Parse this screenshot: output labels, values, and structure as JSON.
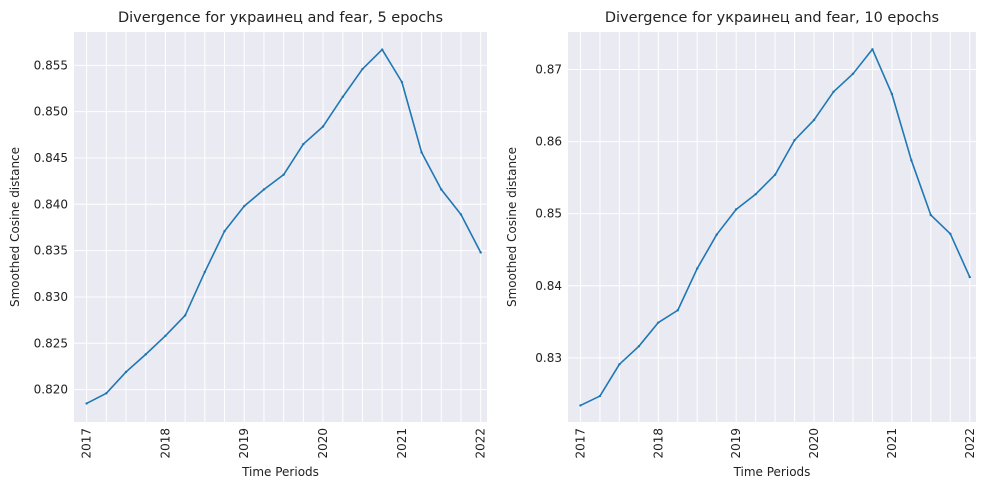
{
  "chart_data": [
    {
      "type": "line",
      "title": "Divergence for украинец and fear, 5 epochs",
      "xlabel": "Time Periods",
      "ylabel": "Smoothed Cosine distance",
      "x_ticks": [
        "2017",
        "2018",
        "2019",
        "2020",
        "2021",
        "2022"
      ],
      "y_ticks": [
        "0.820",
        "0.825",
        "0.830",
        "0.835",
        "0.840",
        "0.845",
        "0.850",
        "0.855"
      ],
      "ylim": [
        0.8165,
        0.8586
      ],
      "xlim": [
        2016.84,
        2022.08
      ],
      "grid": true,
      "x": [
        2017.0,
        2017.25,
        2017.5,
        2017.75,
        2018.0,
        2018.25,
        2018.5,
        2018.75,
        2019.0,
        2019.25,
        2019.5,
        2019.75,
        2020.0,
        2020.25,
        2020.5,
        2020.75,
        2021.0,
        2021.25,
        2021.5,
        2021.75,
        2022.0
      ],
      "values": [
        0.8185,
        0.8196,
        0.8219,
        0.8238,
        0.8258,
        0.828,
        0.8327,
        0.8371,
        0.8398,
        0.8416,
        0.8432,
        0.8465,
        0.8484,
        0.8516,
        0.8546,
        0.8567,
        0.8532,
        0.8456,
        0.8416,
        0.8389,
        0.8348
      ]
    },
    {
      "type": "line",
      "title": "Divergence for украинец and fear, 10 epochs",
      "xlabel": "Time Periods",
      "ylabel": "Smoothed Cosine distance",
      "x_ticks": [
        "2017",
        "2018",
        "2019",
        "2020",
        "2021",
        "2022"
      ],
      "y_ticks": [
        "0.83",
        "0.84",
        "0.85",
        "0.86",
        "0.87"
      ],
      "ylim": [
        0.8211,
        0.8752
      ],
      "xlim": [
        2016.84,
        2022.08
      ],
      "grid": true,
      "x": [
        2017.0,
        2017.25,
        2017.5,
        2017.75,
        2018.0,
        2018.25,
        2018.5,
        2018.75,
        2019.0,
        2019.25,
        2019.5,
        2019.75,
        2020.0,
        2020.25,
        2020.5,
        2020.75,
        2021.0,
        2021.25,
        2021.5,
        2021.75,
        2022.0
      ],
      "values": [
        0.8234,
        0.8247,
        0.8291,
        0.8316,
        0.8349,
        0.8366,
        0.8424,
        0.8471,
        0.8506,
        0.8527,
        0.8554,
        0.8602,
        0.863,
        0.8669,
        0.8694,
        0.8728,
        0.8666,
        0.8574,
        0.8498,
        0.8472,
        0.8412
      ]
    }
  ]
}
